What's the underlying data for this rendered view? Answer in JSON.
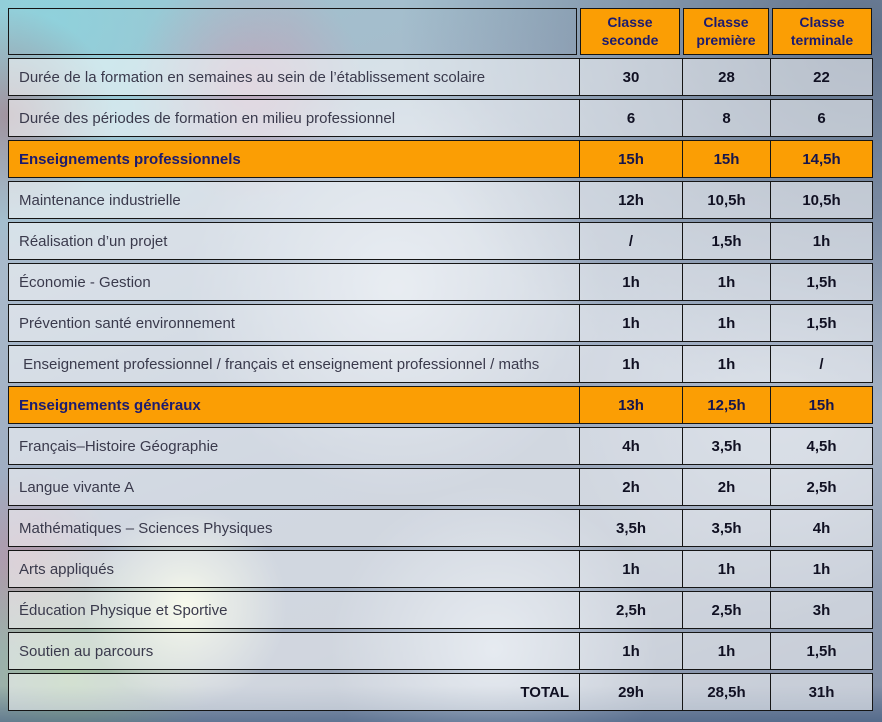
{
  "colors": {
    "orange": "#FB9E04",
    "header_text": "#1B1B70",
    "border": "#151515",
    "label_text": "#3A3A4C",
    "value_text": "#101022"
  },
  "table": {
    "columns": [
      "Classe seconde",
      "Classe première",
      "Classe terminale"
    ],
    "rows": [
      {
        "type": "normal",
        "label": "Durée de la formation en semaines au sein de l’établissement scolaire",
        "values": [
          "30",
          "28",
          "22"
        ]
      },
      {
        "type": "normal",
        "label": "Durée des périodes de formation en milieu professionnel",
        "values": [
          "6",
          "8",
          "6"
        ]
      },
      {
        "type": "section",
        "label": "Enseignements professionnels",
        "values": [
          "15h",
          "15h",
          "14,5h"
        ]
      },
      {
        "type": "normal",
        "label": "Maintenance industrielle",
        "values": [
          "12h",
          "10,5h",
          "10,5h"
        ]
      },
      {
        "type": "normal",
        "label": "Réalisation d’un projet",
        "values": [
          "/",
          "1,5h",
          "1h"
        ]
      },
      {
        "type": "normal",
        "label": "Économie - Gestion",
        "values": [
          "1h",
          "1h",
          "1,5h"
        ]
      },
      {
        "type": "normal",
        "label": "Prévention santé environnement",
        "values": [
          "1h",
          "1h",
          "1,5h"
        ]
      },
      {
        "type": "normal",
        "label": " Enseignement professionnel / français et enseignement professionnel / maths",
        "values": [
          "1h",
          "1h",
          "/"
        ]
      },
      {
        "type": "section",
        "label": "Enseignements généraux",
        "values": [
          "13h",
          "12,5h",
          "15h"
        ]
      },
      {
        "type": "normal",
        "label": "Français–Histoire Géographie",
        "values": [
          "4h",
          "3,5h",
          "4,5h"
        ]
      },
      {
        "type": "normal",
        "label": "Langue vivante A",
        "values": [
          "2h",
          "2h",
          "2,5h"
        ]
      },
      {
        "type": "normal",
        "label": "Mathématiques – Sciences Physiques",
        "values": [
          "3,5h",
          "3,5h",
          "4h"
        ]
      },
      {
        "type": "normal",
        "label": "Arts appliqués",
        "values": [
          "1h",
          "1h",
          "1h"
        ]
      },
      {
        "type": "normal",
        "label": "Éducation Physique et Sportive",
        "values": [
          "2,5h",
          "2,5h",
          "3h"
        ]
      },
      {
        "type": "normal",
        "label": "Soutien au parcours",
        "values": [
          "1h",
          "1h",
          "1,5h"
        ]
      },
      {
        "type": "total",
        "label": "TOTAL",
        "values": [
          "29h",
          "28,5h",
          "31h"
        ]
      }
    ]
  }
}
